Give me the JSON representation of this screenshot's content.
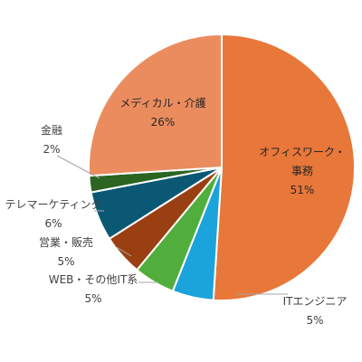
{
  "chart_data": {
    "type": "pie",
    "start_angle_deg": 0,
    "direction": "clockwise",
    "slices": [
      {
        "name": "オフィスワーク・事務",
        "lines": [
          "オフィスワーク・",
          "事務"
        ],
        "pct": "51%",
        "value": 51,
        "color": "#E8773A",
        "label_pos": "inside"
      },
      {
        "name": "ITエンジニア",
        "lines": [
          "ITエンジニア"
        ],
        "pct": "5%",
        "value": 5,
        "color": "#1BA3DB",
        "label_pos": "outside"
      },
      {
        "name": "WEB・その他IT系",
        "lines": [
          "WEB・その他IT系"
        ],
        "pct": "5%",
        "value": 5,
        "color": "#52AE3C",
        "label_pos": "outside"
      },
      {
        "name": "営業・販売",
        "lines": [
          "営業・販売"
        ],
        "pct": "5%",
        "value": 5,
        "color": "#9A3F12",
        "label_pos": "outside"
      },
      {
        "name": "テレマーケティング",
        "lines": [
          "テレマーケティング"
        ],
        "pct": "6%",
        "value": 6,
        "color": "#0B5875",
        "label_pos": "outside"
      },
      {
        "name": "金融",
        "lines": [
          "金融"
        ],
        "pct": "2%",
        "value": 2,
        "color": "#2B6521",
        "label_pos": "outside"
      },
      {
        "name": "メディカル・介護",
        "lines": [
          "メディカル・介護"
        ],
        "pct": "26%",
        "value": 26,
        "color": "#EB8C5E",
        "label_pos": "inside"
      }
    ]
  }
}
